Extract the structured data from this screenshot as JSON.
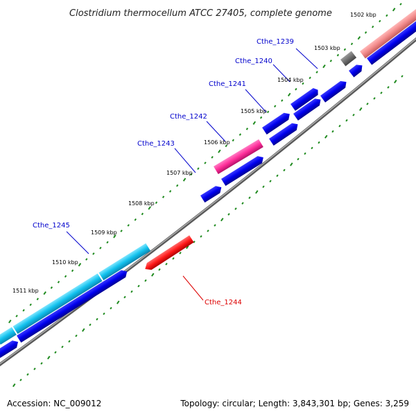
{
  "title": "Clostridium thermocellum ATCC 27405, complete genome",
  "footer": {
    "accession": "Accession: NC_009012",
    "summary": "Topology: circular; Length: 3,843,301 bp; Genes: 3,259"
  },
  "scale": {
    "kbp_1502": "1502 kbp",
    "kbp_1503": "1503 kbp",
    "kbp_1504": "1504 kbp",
    "kbp_1505": "1505 kbp",
    "kbp_1506": "1506 kbp",
    "kbp_1507": "1507 kbp",
    "kbp_1508": "1508 kbp",
    "kbp_1509": "1509 kbp",
    "kbp_1510": "1510 kbp",
    "kbp_1511": "1511 kbp"
  },
  "genes": {
    "cthe_1239": "Cthe_1239",
    "cthe_1240": "Cthe_1240",
    "cthe_1241": "Cthe_1241",
    "cthe_1242": "Cthe_1242",
    "cthe_1243": "Cthe_1243",
    "cthe_1244": "Cthe_1244",
    "cthe_1245": "Cthe_1245"
  },
  "colors": {
    "backbone": "#777777",
    "dots": "#1e8a1e",
    "cds": "#0000ee",
    "label_plus": "#0000cc",
    "label_minus": "#dd0000",
    "cthe_1239_feature": "#707070",
    "cthe_1242_feature": "#ff2f9a",
    "cthe_1244_feature": "#ff1a1a",
    "cthe_1245_feature": "#11c0ee",
    "top_right_feature": "#f28a8a"
  }
}
